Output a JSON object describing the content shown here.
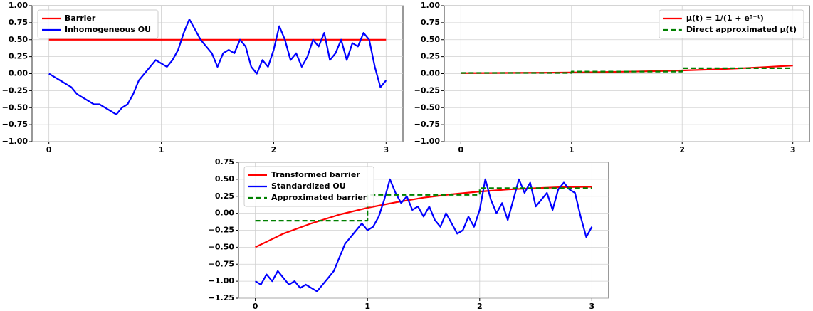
{
  "chart_data": [
    {
      "type": "line",
      "legend": "upper left",
      "grid": true,
      "xlim": [
        -0.15,
        3.15
      ],
      "xticks": [
        0,
        1,
        2,
        3
      ],
      "ylim": [
        -1,
        1
      ],
      "yticks": [
        {
          "value": -1,
          "label": "−1.00"
        },
        {
          "value": -0.75,
          "label": "−0.75"
        },
        {
          "value": -0.5,
          "label": "−0.50"
        },
        {
          "value": -0.25,
          "label": "−0.25"
        },
        {
          "value": 0,
          "label": "0.00"
        },
        {
          "value": 0.25,
          "label": "0.25"
        },
        {
          "value": 0.5,
          "label": "0.50"
        },
        {
          "value": 0.75,
          "label": "0.75"
        },
        {
          "value": 1,
          "label": "1.00"
        }
      ],
      "series": [
        {
          "name": "Barrier",
          "color": "#ff0000",
          "x": [
            0,
            3
          ],
          "values": [
            0.5,
            0.5
          ]
        },
        {
          "name": "Inhomogeneous OU",
          "color": "#0000ff",
          "x": [
            0,
            0.05,
            0.1,
            0.15,
            0.2,
            0.25,
            0.3,
            0.35,
            0.4,
            0.45,
            0.5,
            0.55,
            0.6,
            0.65,
            0.7,
            0.75,
            0.8,
            0.85,
            0.9,
            0.95,
            1,
            1.05,
            1.1,
            1.15,
            1.2,
            1.25,
            1.3,
            1.35,
            1.4,
            1.45,
            1.5,
            1.55,
            1.6,
            1.65,
            1.7,
            1.75,
            1.8,
            1.85,
            1.9,
            1.95,
            2,
            2.05,
            2.1,
            2.15,
            2.2,
            2.25,
            2.3,
            2.35,
            2.4,
            2.45,
            2.5,
            2.55,
            2.6,
            2.65,
            2.7,
            2.75,
            2.8,
            2.85,
            2.9,
            2.95,
            3
          ],
          "values": [
            0.0,
            -0.05,
            -0.1,
            -0.15,
            -0.2,
            -0.3,
            -0.35,
            -0.4,
            -0.45,
            -0.45,
            -0.5,
            -0.55,
            -0.6,
            -0.5,
            -0.45,
            -0.3,
            -0.1,
            0.0,
            0.1,
            0.2,
            0.15,
            0.1,
            0.2,
            0.35,
            0.6,
            0.8,
            0.65,
            0.5,
            0.4,
            0.3,
            0.1,
            0.3,
            0.35,
            0.3,
            0.5,
            0.4,
            0.1,
            0.0,
            0.2,
            0.1,
            0.35,
            0.7,
            0.5,
            0.2,
            0.3,
            0.1,
            0.25,
            0.5,
            0.4,
            0.6,
            0.2,
            0.3,
            0.5,
            0.2,
            0.45,
            0.4,
            0.6,
            0.5,
            0.1,
            -0.2,
            -0.1
          ]
        }
      ]
    },
    {
      "type": "line",
      "legend": "upper right",
      "grid": true,
      "xlim": [
        -0.15,
        3.15
      ],
      "xticks": [
        0,
        1,
        2,
        3
      ],
      "ylim": [
        -1,
        1
      ],
      "yticks": [
        {
          "value": -1,
          "label": "−1.00"
        },
        {
          "value": -0.75,
          "label": "−0.75"
        },
        {
          "value": -0.5,
          "label": "−0.50"
        },
        {
          "value": -0.25,
          "label": "−0.25"
        },
        {
          "value": 0,
          "label": "0.00"
        },
        {
          "value": 0.25,
          "label": "0.25"
        },
        {
          "value": 0.5,
          "label": "0.50"
        },
        {
          "value": 0.75,
          "label": "0.75"
        },
        {
          "value": 1,
          "label": "1.00"
        }
      ],
      "series": [
        {
          "name": "μ(t) = 1/(1 + e⁵⁻ᵗ)",
          "color": "#ff0000",
          "x": [
            0,
            0.25,
            0.5,
            0.75,
            1,
            1.25,
            1.5,
            1.75,
            2,
            2.25,
            2.5,
            2.75,
            3
          ],
          "values": [
            0.007,
            0.009,
            0.011,
            0.014,
            0.018,
            0.023,
            0.029,
            0.037,
            0.047,
            0.06,
            0.076,
            0.096,
            0.119
          ]
        },
        {
          "name": "Direct approximated μ(t)",
          "color": "#008000",
          "dash": true,
          "x": [
            0,
            1,
            1,
            2,
            2,
            3
          ],
          "values": [
            0.01,
            0.01,
            0.03,
            0.03,
            0.08,
            0.08
          ]
        }
      ]
    },
    {
      "type": "line",
      "legend": "upper left",
      "grid": true,
      "xlim": [
        -0.15,
        3.15
      ],
      "xticks": [
        0,
        1,
        2,
        3
      ],
      "ylim": [
        -1.25,
        0.75
      ],
      "yticks": [
        {
          "value": -1.25,
          "label": "−1.25"
        },
        {
          "value": -1,
          "label": "−1.00"
        },
        {
          "value": -0.75,
          "label": "−0.75"
        },
        {
          "value": -0.5,
          "label": "−0.50"
        },
        {
          "value": -0.25,
          "label": "−0.25"
        },
        {
          "value": 0,
          "label": "0.00"
        },
        {
          "value": 0.25,
          "label": "0.25"
        },
        {
          "value": 0.5,
          "label": "0.50"
        },
        {
          "value": 0.75,
          "label": "0.75"
        }
      ],
      "series": [
        {
          "name": "Transformed barrier",
          "color": "#ff0000",
          "x": [
            0,
            0.25,
            0.5,
            0.75,
            1,
            1.25,
            1.5,
            1.75,
            2,
            2.25,
            2.5,
            2.75,
            3
          ],
          "values": [
            -0.5,
            -0.3,
            -0.15,
            -0.02,
            0.08,
            0.16,
            0.23,
            0.28,
            0.32,
            0.35,
            0.37,
            0.385,
            0.39
          ]
        },
        {
          "name": "Standardized OU",
          "color": "#0000ff",
          "x": [
            0,
            0.05,
            0.1,
            0.15,
            0.2,
            0.25,
            0.3,
            0.35,
            0.4,
            0.45,
            0.5,
            0.55,
            0.6,
            0.65,
            0.7,
            0.75,
            0.8,
            0.85,
            0.9,
            0.95,
            1,
            1.05,
            1.1,
            1.15,
            1.2,
            1.25,
            1.3,
            1.35,
            1.4,
            1.45,
            1.5,
            1.55,
            1.6,
            1.65,
            1.7,
            1.75,
            1.8,
            1.85,
            1.9,
            1.95,
            2,
            2.05,
            2.1,
            2.15,
            2.2,
            2.25,
            2.3,
            2.35,
            2.4,
            2.45,
            2.5,
            2.55,
            2.6,
            2.65,
            2.7,
            2.75,
            2.8,
            2.85,
            2.9,
            2.95,
            3
          ],
          "values": [
            -1.0,
            -1.05,
            -0.9,
            -1.0,
            -0.85,
            -0.95,
            -1.05,
            -1.0,
            -1.1,
            -1.05,
            -1.1,
            -1.15,
            -1.05,
            -0.95,
            -0.85,
            -0.65,
            -0.45,
            -0.35,
            -0.25,
            -0.15,
            -0.25,
            -0.2,
            -0.05,
            0.2,
            0.5,
            0.3,
            0.15,
            0.25,
            0.05,
            0.1,
            -0.05,
            0.1,
            -0.1,
            -0.2,
            0.0,
            -0.15,
            -0.3,
            -0.25,
            -0.05,
            -0.2,
            0.05,
            0.5,
            0.2,
            0.0,
            0.15,
            -0.1,
            0.2,
            0.5,
            0.3,
            0.45,
            0.1,
            0.2,
            0.3,
            0.05,
            0.35,
            0.45,
            0.35,
            0.3,
            -0.05,
            -0.35,
            -0.2
          ]
        },
        {
          "name": "Approximated barrier",
          "color": "#008000",
          "dash": true,
          "x": [
            0,
            1,
            1,
            2,
            2,
            3
          ],
          "values": [
            -0.11,
            -0.11,
            0.27,
            0.27,
            0.37,
            0.37
          ]
        }
      ]
    }
  ]
}
